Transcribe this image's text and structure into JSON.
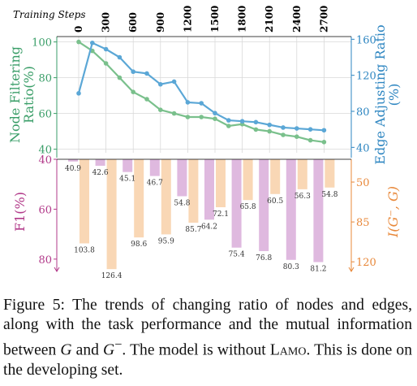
{
  "chart_data": [
    {
      "type": "line",
      "header_label": "Training Steps",
      "x": [
        0,
        300,
        600,
        900,
        1200,
        1500,
        1800,
        2100,
        2400,
        2700
      ],
      "x_tick_labels": [
        "0",
        "300",
        "600",
        "900",
        "1200",
        "1500",
        "1800",
        "2100",
        "2400",
        "2700"
      ],
      "left_axis": {
        "label": "Node Filtering Ratio(%)",
        "ylim": [
          38,
          103
        ],
        "ticks": [
          40,
          60,
          80,
          100
        ],
        "color": "#3a9e68"
      },
      "right_axis": {
        "label": "Edge Adjusting Ratio (%)",
        "ylim": [
          34,
          163
        ],
        "ticks": [
          40,
          80,
          120,
          160
        ],
        "color": "#2e86c1"
      },
      "series": [
        {
          "axis": "left",
          "color": "#7ac08c",
          "x": [
            0,
            150,
            300,
            450,
            600,
            750,
            900,
            1050,
            1200,
            1350,
            1500,
            1650,
            1800,
            1950,
            2100,
            2250,
            2400,
            2550,
            2700
          ],
          "values": [
            100,
            95,
            88,
            80,
            72,
            68,
            62,
            60,
            58,
            58,
            57,
            53,
            54,
            51,
            50,
            48,
            47,
            45,
            44
          ]
        },
        {
          "axis": "right",
          "color": "#5ba7d6",
          "x": [
            0,
            150,
            300,
            450,
            600,
            750,
            900,
            1050,
            1200,
            1350,
            1500,
            1650,
            1800,
            1950,
            2100,
            2250,
            2400,
            2550,
            2700
          ],
          "values": [
            100,
            156,
            149,
            140,
            124,
            122,
            110,
            113,
            90,
            89,
            78,
            70,
            69,
            68,
            65,
            62,
            61,
            60,
            59
          ]
        }
      ]
    },
    {
      "type": "bar",
      "categories": [
        "0",
        "300",
        "600",
        "900",
        "1200",
        "1500",
        "1800",
        "2100",
        "2400",
        "2700"
      ],
      "left_axis": {
        "label": "F1(%)",
        "ylim": [
          40,
          82
        ],
        "ticks": [
          40,
          60,
          80
        ],
        "color": "#b23a8a"
      },
      "right_axis": {
        "label": "I(G⁻, G)",
        "ylim": [
          30,
          122
        ],
        "ticks": [
          50,
          85,
          120
        ],
        "color": "#e8883a"
      },
      "series": [
        {
          "axis": "left",
          "color": "#dfb9df",
          "values": [
            40.9,
            42.6,
            45.1,
            46.7,
            54.8,
            64.2,
            75.4,
            76.8,
            80.3,
            81.2
          ]
        },
        {
          "axis": "right",
          "color": "#f9d7b5",
          "values": [
            103.8,
            126.4,
            98.6,
            95.9,
            85.7,
            72.1,
            65.8,
            60.5,
            56.3,
            54.8
          ]
        }
      ]
    }
  ],
  "caption": {
    "lead": "Figure 5: The trends of changing ratio of nodes and edges, along with the task performance and the mutual information between ",
    "g": "G",
    "and": " and ",
    "gminus": "G",
    "gminus_sup": "−",
    "mid": ". The model is without ",
    "lamo": "Lamo",
    "end": ". This is done on the developing set."
  }
}
